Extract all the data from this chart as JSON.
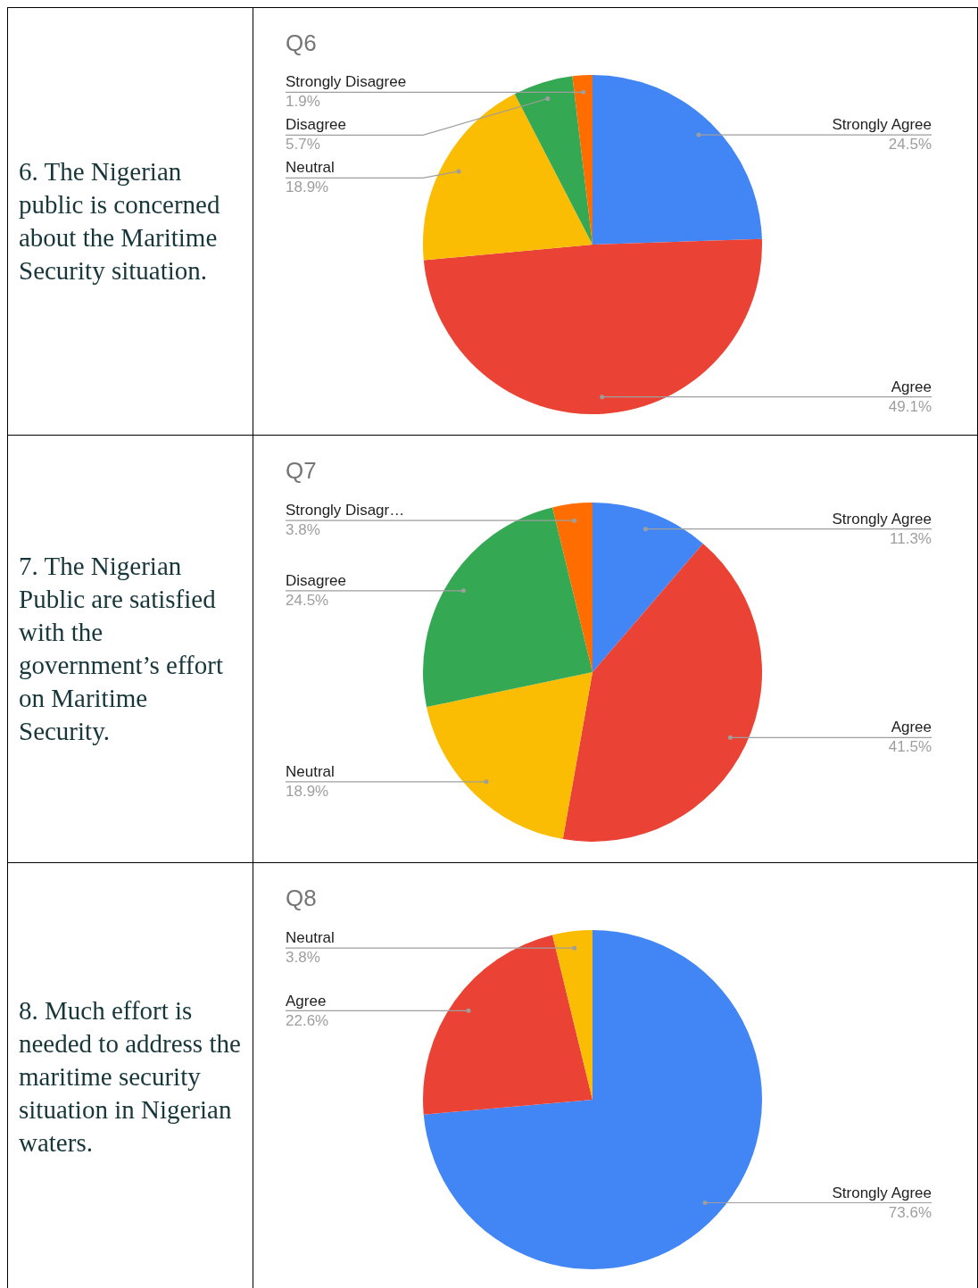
{
  "chart_data": [
    {
      "type": "pie",
      "title": "Q6",
      "annotations": [
        "6. The Nigerian public is concerned about the Maritime Security situation."
      ],
      "categories": [
        "Strongly Agree",
        "Agree",
        "Neutral",
        "Disagree",
        "Strongly Disagree"
      ],
      "values": [
        24.5,
        49.1,
        18.9,
        5.7,
        1.9
      ],
      "colors": [
        "#4285f4",
        "#ea4335",
        "#fbbc04",
        "#34a853",
        "#ff6d01"
      ],
      "value_labels": [
        "24.5%",
        "49.1%",
        "18.9%",
        "5.7%",
        "1.9%"
      ]
    },
    {
      "type": "pie",
      "title": "Q7",
      "annotations": [
        "7. The Nigerian Public are satisfied with the government’s effort on Maritime Security."
      ],
      "categories": [
        "Strongly Agree",
        "Agree",
        "Neutral",
        "Disagree",
        "Strongly Disagr…"
      ],
      "values": [
        11.3,
        41.5,
        18.9,
        24.5,
        3.8
      ],
      "colors": [
        "#4285f4",
        "#ea4335",
        "#fbbc04",
        "#34a853",
        "#ff6d01"
      ],
      "value_labels": [
        "11.3%",
        "41.5%",
        "18.9%",
        "24.5%",
        "3.8%"
      ]
    },
    {
      "type": "pie",
      "title": "Q8",
      "annotations": [
        "8. Much effort is needed to address the maritime security situation in Nigerian waters."
      ],
      "categories": [
        "Strongly Agree",
        "Agree",
        "Neutral"
      ],
      "values": [
        73.6,
        22.6,
        3.8
      ],
      "colors": [
        "#4285f4",
        "#ea4335",
        "#fbbc04"
      ],
      "value_labels": [
        "73.6%",
        "22.6%",
        "3.8%"
      ]
    }
  ]
}
